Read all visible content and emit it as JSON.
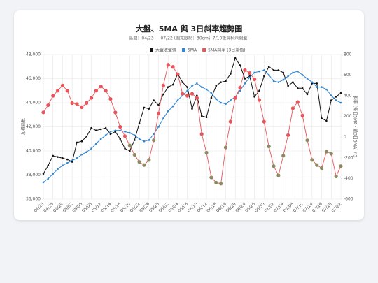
{
  "chart_data": {
    "type": "line",
    "title": "大盤、5MA 與 3日斜率趨勢圖",
    "subtitle": "區間：04/23 — 07/22 (圖寬限制：30cm；7/10後資料未開盤)",
    "ylabel": "加權指數",
    "y2label": "斜率 (每日5MA - 前3日5MA) / 3",
    "categories": [
      "04/23",
      null,
      "04/25",
      null,
      "04/29",
      null,
      "05/02",
      null,
      "05/06",
      null,
      "05/08",
      null,
      "05/12",
      null,
      "05/14",
      null,
      "05/16",
      null,
      "05/20",
      null,
      "05/22",
      null,
      "05/26",
      null,
      "05/28",
      null,
      "06/02",
      null,
      "06/04",
      null,
      "06/06",
      null,
      "06/10",
      null,
      "06/12",
      null,
      "06/16",
      null,
      "06/18",
      null,
      "06/20",
      null,
      "06/24",
      null,
      "06/26",
      null,
      "06/30",
      null,
      "07/02",
      null,
      "07/04",
      null,
      "07/08",
      null,
      "07/10",
      null,
      "07/14",
      null,
      "07/16",
      null,
      "07/18",
      null,
      "07/22"
    ],
    "series": [
      {
        "name": "大盤收盤價",
        "color": "#111111",
        "axis": "y",
        "values": [
          38100,
          38800,
          39600,
          39500,
          39400,
          39300,
          39100,
          40700,
          40800,
          41200,
          41900,
          41700,
          41800,
          41900,
          41400,
          41600,
          41000,
          40200,
          40000,
          40900,
          42300,
          43600,
          43500,
          44200,
          43800,
          44700,
          45300,
          45500,
          46400,
          45700,
          45300,
          43500,
          44600,
          42900,
          42800,
          44400,
          45400,
          45700,
          45800,
          46400,
          47700,
          47100,
          46000,
          46200,
          44500,
          45000,
          46200,
          47000,
          46700,
          46700,
          46500,
          45400,
          45700,
          45200,
          45200,
          44700,
          45600,
          45600,
          42700,
          42500,
          44200,
          44500,
          44800
        ]
      },
      {
        "name": "5MA",
        "color": "#2f86d6",
        "axis": "y",
        "values": [
          37400,
          37700,
          38100,
          38500,
          38800,
          39000,
          39200,
          39400,
          39700,
          39900,
          40200,
          40600,
          41000,
          41300,
          41600,
          41700,
          41700,
          41600,
          41500,
          41300,
          41000,
          40800,
          40900,
          41400,
          42000,
          42700,
          43300,
          43700,
          44200,
          44600,
          45000,
          45400,
          45600,
          45300,
          45100,
          44800,
          44300,
          44000,
          43900,
          44200,
          44500,
          45000,
          45600,
          46100,
          46500,
          46600,
          46700,
          46300,
          45800,
          45700,
          45900,
          46200,
          46500,
          46600,
          46300,
          46000,
          45700,
          45300,
          45300,
          45100,
          44600,
          44200,
          44000
        ]
      },
      {
        "name": "5MA斜率 (3日差值)",
        "color": "#e8555a",
        "negative_color": "#8c8a63",
        "axis": "y2",
        "values": [
          240,
          310,
          400,
          450,
          500,
          450,
          330,
          320,
          290,
          330,
          380,
          450,
          490,
          450,
          370,
          240,
          100,
          10,
          -80,
          -170,
          -240,
          -270,
          -220,
          -30,
          230,
          500,
          700,
          680,
          610,
          420,
          400,
          420,
          380,
          30,
          -150,
          -390,
          -440,
          -450,
          -100,
          150,
          380,
          480,
          650,
          620,
          560,
          360,
          150,
          -90,
          -280,
          -370,
          -180,
          20,
          280,
          340,
          210,
          -30,
          -220,
          -270,
          -300,
          -140,
          -160,
          -380,
          -280
        ]
      }
    ],
    "ylim": [
      36000,
      48000
    ],
    "yticks": [
      {
        "value": 36000,
        "label": "36,000"
      },
      {
        "value": 38000,
        "label": "38,000"
      },
      {
        "value": 40000,
        "label": "40,000"
      },
      {
        "value": 42000,
        "label": "42,000"
      },
      {
        "value": 44000,
        "label": "44,000"
      },
      {
        "value": 46000,
        "label": "46,000"
      },
      {
        "value": 48000,
        "label": "48,000"
      }
    ],
    "y2lim": [
      -600,
      800
    ],
    "y2ticks": [
      -600,
      -400,
      -200,
      0,
      200,
      400,
      600,
      800
    ],
    "grid": true,
    "legend": "top"
  }
}
